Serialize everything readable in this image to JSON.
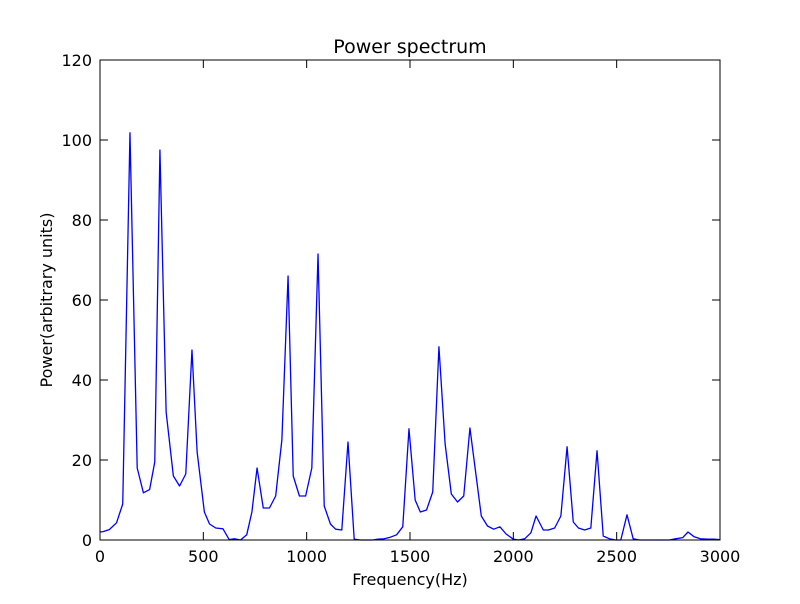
{
  "chart_data": {
    "type": "line",
    "title": "Power spectrum",
    "xlabel": "Frequency(Hz)",
    "ylabel": "Power(arbitrary units)",
    "xlim": [
      0,
      3000
    ],
    "ylim": [
      0,
      120
    ],
    "xticks": [
      "0",
      "500",
      "1000",
      "1500",
      "2000",
      "2500",
      "3000"
    ],
    "yticks": [
      "0",
      "20",
      "40",
      "60",
      "80",
      "100",
      "120"
    ],
    "grid": false,
    "line_color": "#0000ff",
    "series": [
      {
        "x": [
          0,
          15,
          45,
          80,
          110,
          145,
          180,
          210,
          240,
          265,
          290,
          320,
          355,
          385,
          415,
          445,
          470,
          505,
          530,
          560,
          595,
          625,
          650,
          680,
          710,
          735,
          760,
          790,
          820,
          850,
          880,
          910,
          935,
          965,
          995,
          1025,
          1055,
          1085,
          1115,
          1140,
          1170,
          1200,
          1230,
          1260,
          1290,
          1320,
          1345,
          1375,
          1405,
          1435,
          1465,
          1495,
          1525,
          1550,
          1580,
          1610,
          1640,
          1670,
          1700,
          1730,
          1760,
          1790,
          1815,
          1845,
          1875,
          1905,
          1935,
          1965,
          2000,
          2025,
          2055,
          2085,
          2110,
          2145,
          2170,
          2200,
          2230,
          2260,
          2290,
          2315,
          2345,
          2375,
          2405,
          2435,
          2465,
          2495,
          2520,
          2550,
          2580,
          2610,
          2640,
          2665,
          2700,
          2730,
          2755,
          2785,
          2820,
          2845,
          2875,
          2905,
          2940,
          2970,
          3000
        ],
        "y": [
          2,
          2.1,
          2.6,
          4.3,
          9,
          101.8,
          18,
          11.8,
          12.6,
          19.5,
          97.5,
          32,
          16,
          13.5,
          16.5,
          47.5,
          22,
          7,
          4,
          3,
          2.8,
          0.1,
          0.3,
          0,
          1.3,
          7,
          18,
          8,
          8,
          11,
          25,
          66,
          16,
          11,
          11,
          18,
          71.5,
          8.5,
          4,
          2.7,
          2.5,
          24.5,
          0.2,
          0,
          0,
          0,
          0.2,
          0.3,
          0.7,
          1.3,
          3.3,
          27.8,
          10,
          7,
          7.5,
          12,
          48.3,
          24,
          11.5,
          9.5,
          11,
          28,
          18,
          6,
          3.5,
          2.7,
          3.3,
          1.5,
          0.2,
          0,
          0.3,
          1.8,
          6,
          2.5,
          2.5,
          3,
          6,
          23.3,
          4.5,
          3,
          2.5,
          3,
          22.3,
          1,
          0.3,
          0,
          0,
          6.3,
          0.3,
          0,
          0,
          0,
          0,
          0,
          0,
          0.3,
          0.6,
          2,
          0.8,
          0.3,
          0.2,
          0.2,
          0.1
        ]
      }
    ]
  }
}
